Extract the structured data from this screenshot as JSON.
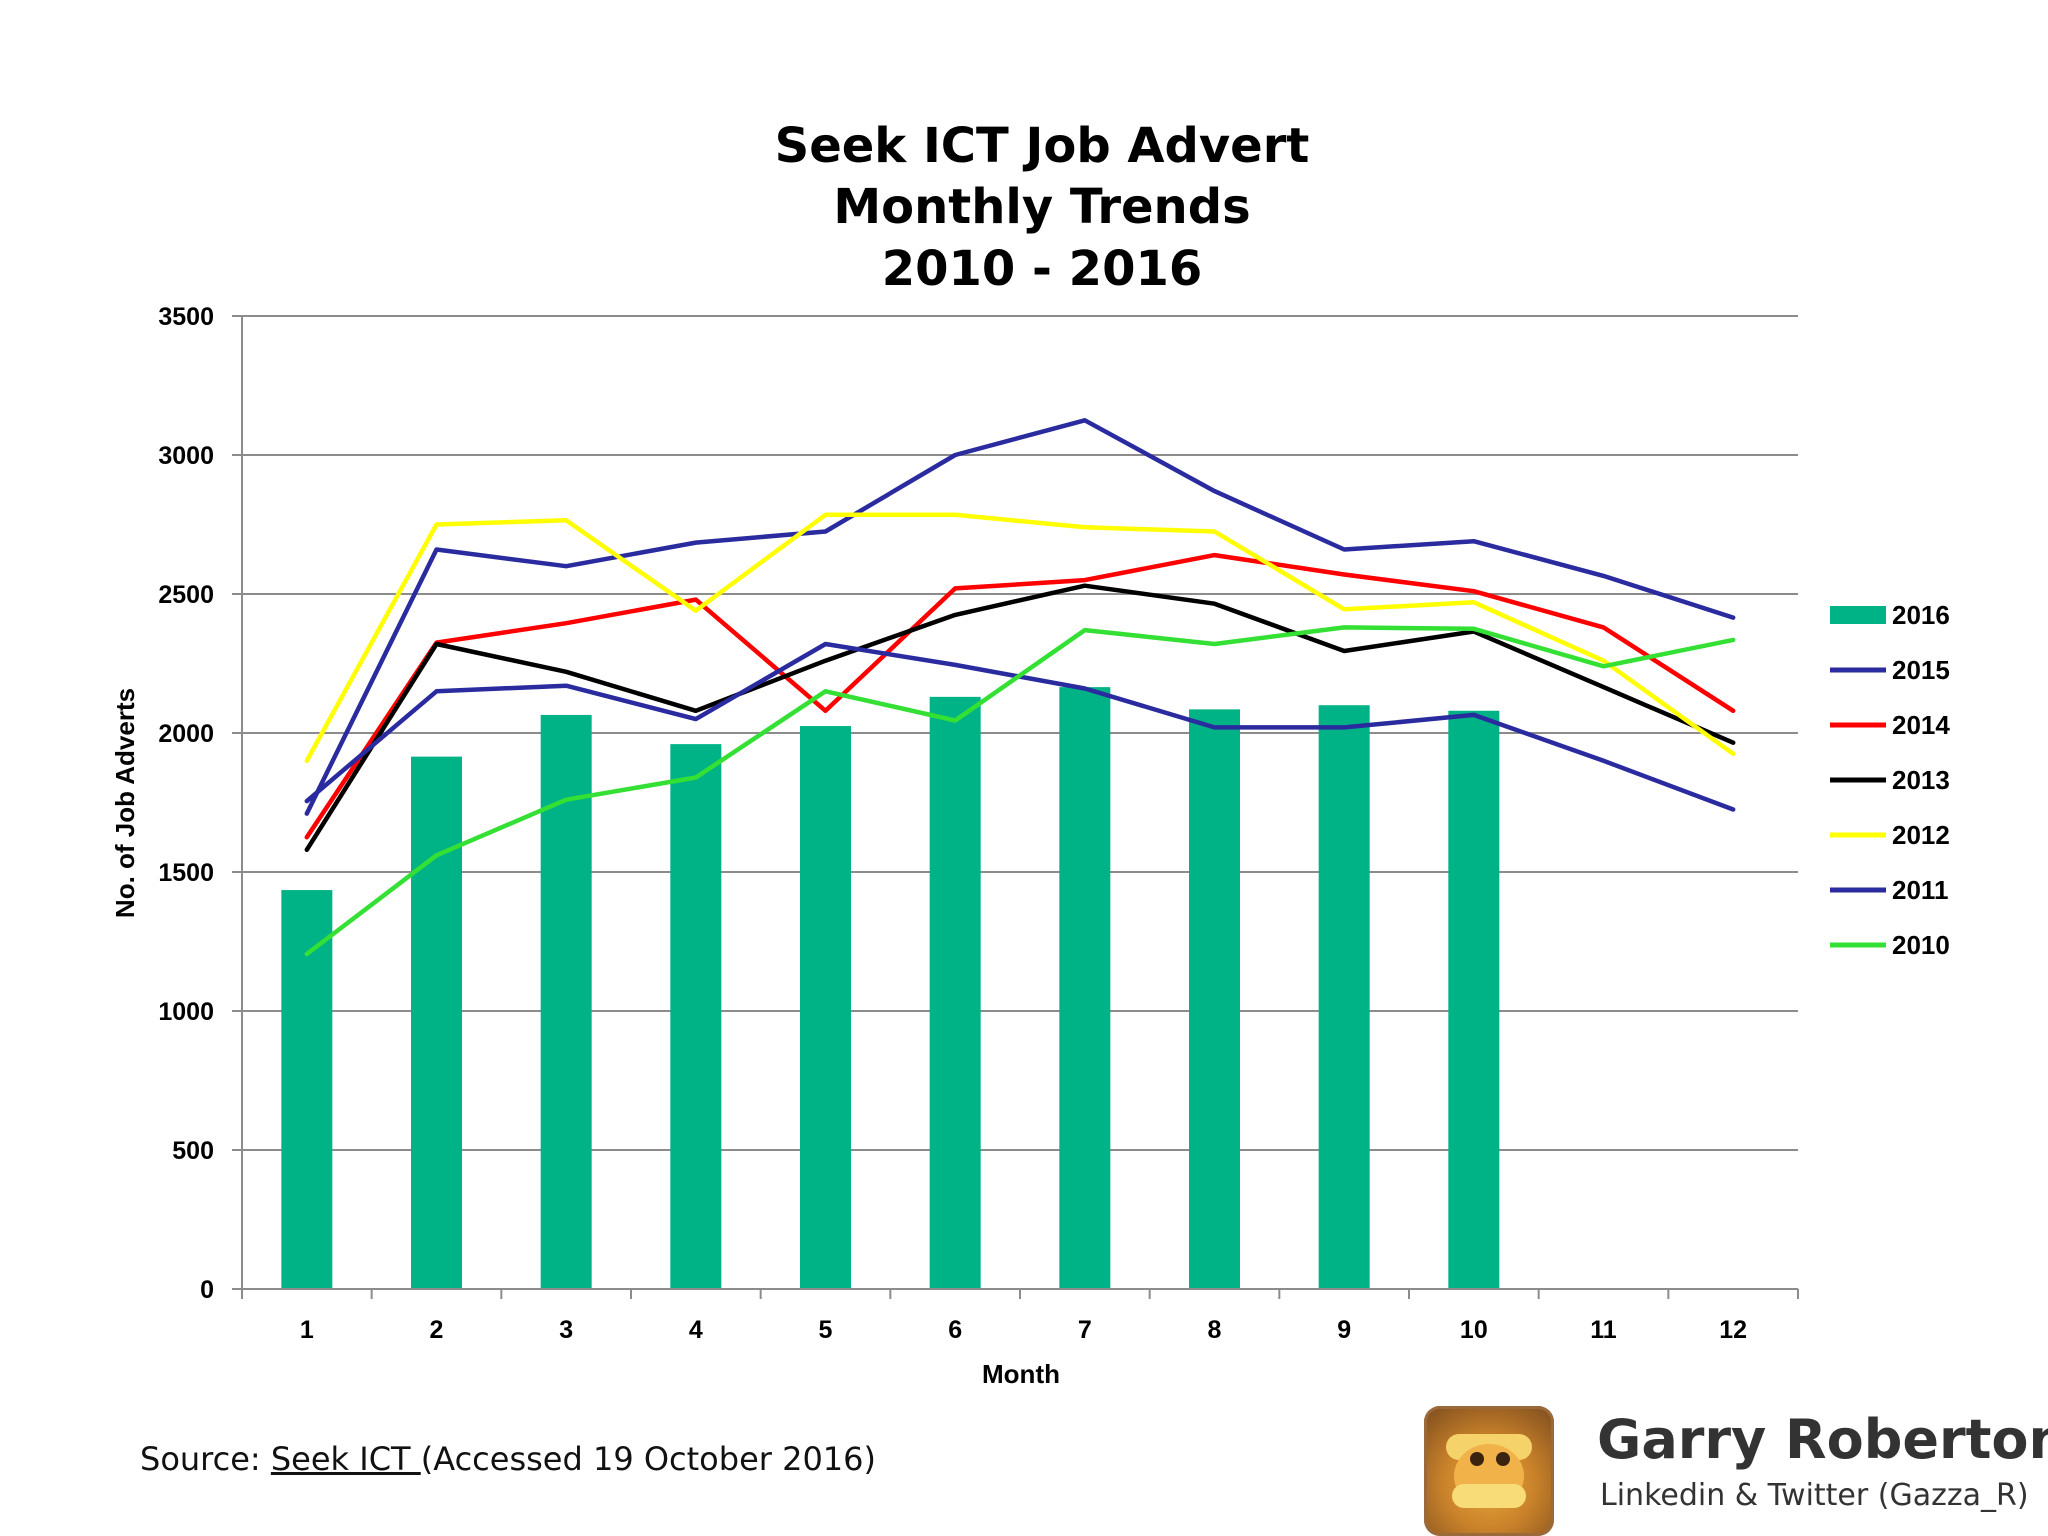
{
  "chart_data": {
    "type": "bar",
    "title_lines": [
      "Seek ICT Job Advert",
      "Monthly Trends",
      "2010 - 2016"
    ],
    "xlabel": "Month",
    "ylabel": "No. of Job Adverts",
    "categories": [
      "1",
      "2",
      "3",
      "4",
      "5",
      "6",
      "7",
      "8",
      "9",
      "10",
      "11",
      "12"
    ],
    "ylim": [
      0,
      3500
    ],
    "yticks": [
      "0",
      "500",
      "1000",
      "1500",
      "2000",
      "2500",
      "3000",
      "3500"
    ],
    "grid": true,
    "legend_position": "right",
    "series": [
      {
        "name": "2016",
        "type": "bar",
        "color": "#00b386",
        "values": [
          1435,
          1915,
          2065,
          1960,
          2025,
          2130,
          2165,
          2085,
          2100,
          2080,
          null,
          null
        ]
      },
      {
        "name": "2015",
        "type": "line",
        "color": "#2b2ba0",
        "values": [
          1710,
          2660,
          2600,
          2685,
          2725,
          3000,
          3125,
          2870,
          2660,
          2690,
          2565,
          2415
        ]
      },
      {
        "name": "2014",
        "type": "line",
        "color": "#ff0000",
        "values": [
          1625,
          2325,
          2395,
          2480,
          2080,
          2520,
          2550,
          2640,
          2570,
          2510,
          2380,
          2080
        ]
      },
      {
        "name": "2013",
        "type": "line",
        "color": "#000000",
        "values": [
          1580,
          2320,
          2220,
          2080,
          2260,
          2425,
          2530,
          2465,
          2295,
          2365,
          2165,
          1965
        ]
      },
      {
        "name": "2012",
        "type": "line",
        "color": "#ffff00",
        "values": [
          1900,
          2750,
          2765,
          2440,
          2785,
          2785,
          2740,
          2725,
          2445,
          2470,
          2260,
          1925
        ]
      },
      {
        "name": "2011",
        "type": "line",
        "color": "#2b2ba0",
        "values": [
          1755,
          2150,
          2170,
          2050,
          2320,
          2245,
          2160,
          2020,
          2020,
          2065,
          1900,
          1725
        ]
      },
      {
        "name": "2010",
        "type": "line",
        "color": "#33e033",
        "values": [
          1205,
          1560,
          1760,
          1840,
          2150,
          2045,
          2370,
          2320,
          2380,
          2375,
          2240,
          2335
        ]
      }
    ]
  },
  "source": {
    "prefix": "Source: ",
    "link_text": "Seek ICT ",
    "suffix": "(Accessed 19 October 2016)"
  },
  "author": {
    "name": "Garry Roberton",
    "handle": "Linkedin & Twitter (Gazza_R)"
  }
}
